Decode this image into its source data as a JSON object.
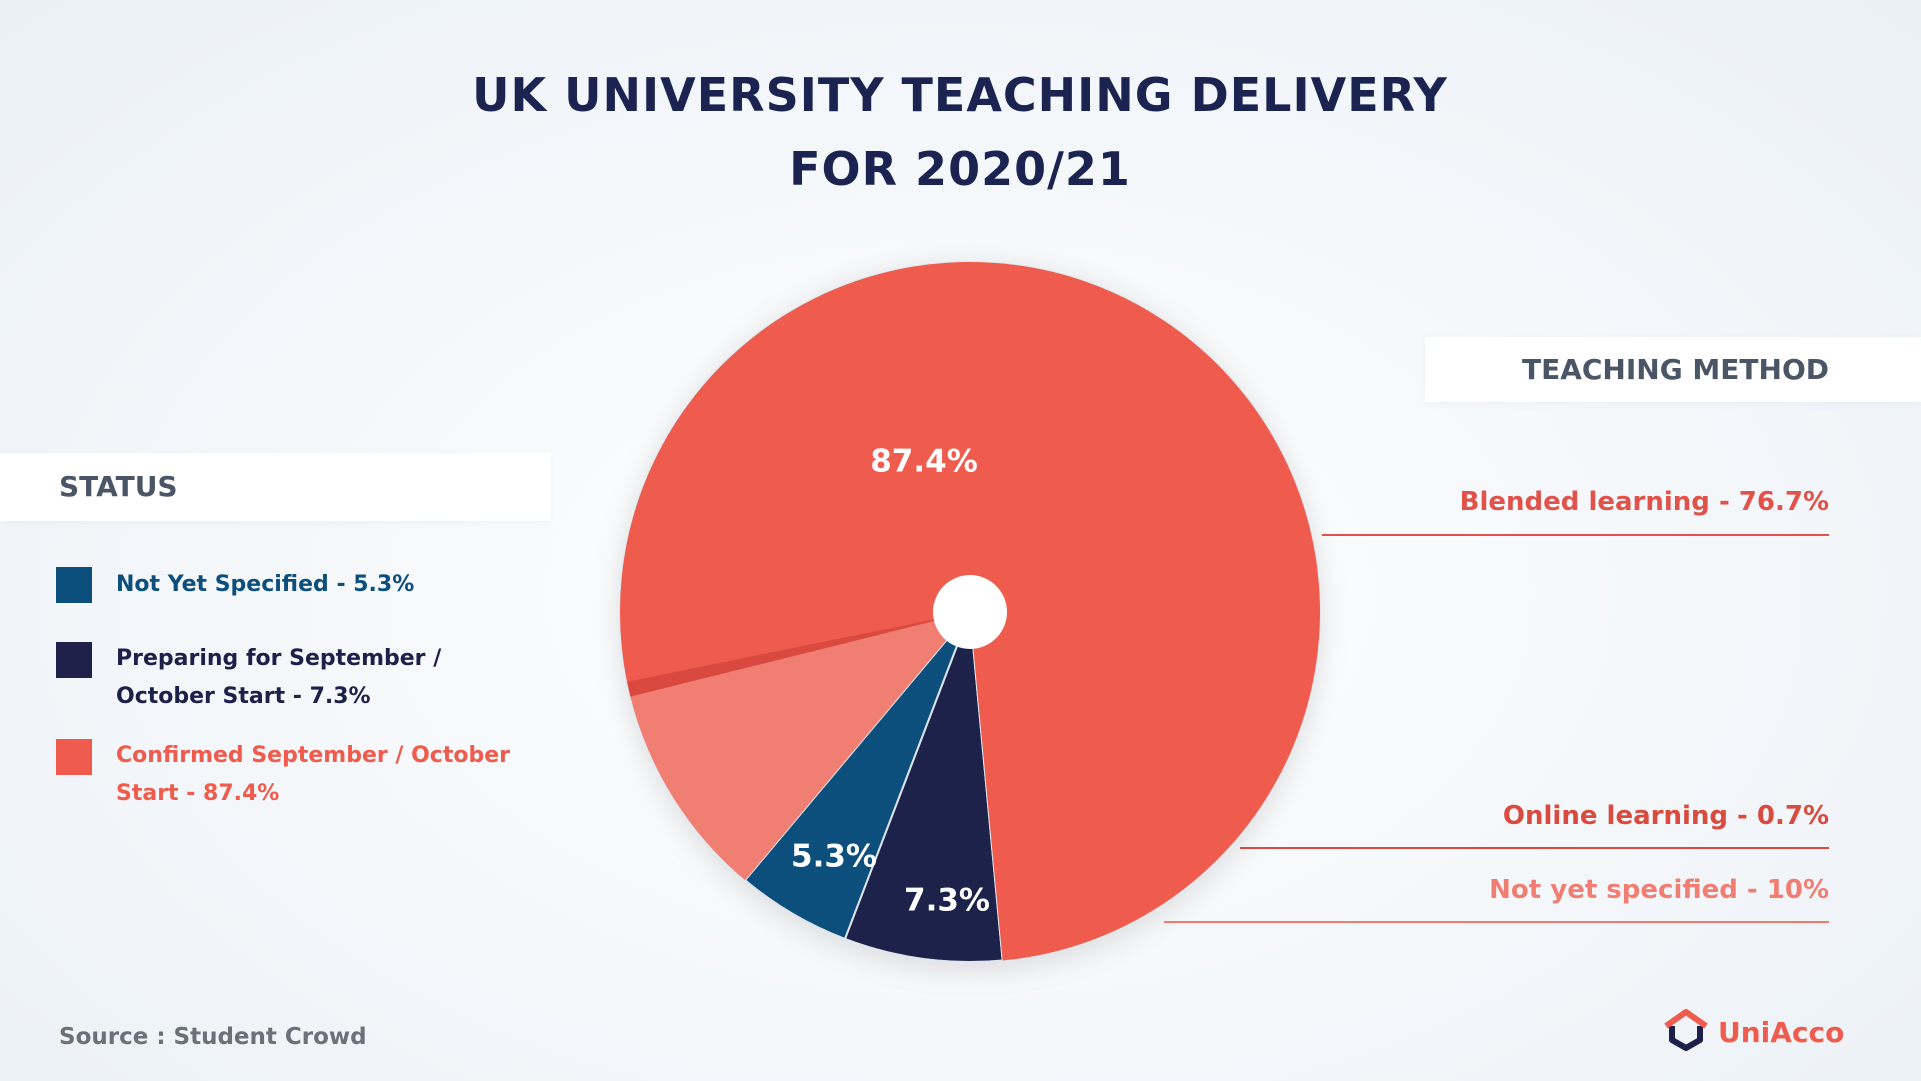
{
  "chart_data": {
    "type": "pie",
    "title": "UK UNIVERSITY TEACHING DELIVERY FOR 2020/21",
    "legend_title": "STATUS",
    "categories": [
      "Not Yet Specified - 5.3%",
      "Preparing for September / October Start - 7.3%",
      "Confirmed September / October Start - 87.4%"
    ],
    "values": [
      5.3,
      7.3,
      87.4
    ],
    "value_labels": [
      "5.3%",
      "7.3%",
      "87.4%"
    ],
    "colors": [
      "#0c4f7c",
      "#1d2048",
      "#ef5b4d"
    ],
    "breakdown": {
      "title": "TEACHING METHOD",
      "categories": [
        "Blended learning - 76.7%",
        "Online learning - 0.7%",
        "Not yet specified - 10%"
      ],
      "values": [
        76.7,
        0.7,
        10
      ],
      "colors": [
        "#ef5b4d",
        "#d94a3f",
        "#f07e72"
      ]
    },
    "source": "Source : Student Crowd",
    "brand": "UniAcco"
  }
}
